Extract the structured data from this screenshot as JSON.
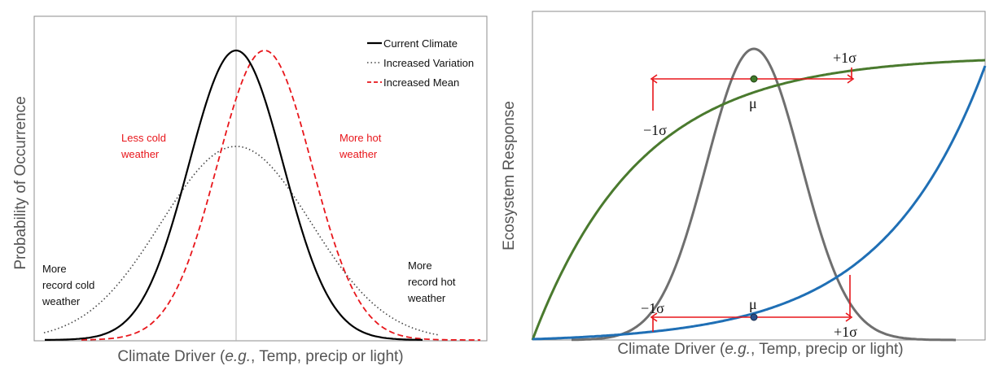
{
  "left": {
    "x_axis_title_pre": "Climate Driver (",
    "x_axis_title_ital": "e.g.",
    "x_axis_title_post": ", Temp, precip or light)",
    "y_axis_title": "Probability of Occurrence",
    "legend": [
      {
        "label": "Current Climate",
        "color": "#000000",
        "style": "solid"
      },
      {
        "label": "Increased Variation",
        "color": "#444444",
        "style": "dotted"
      },
      {
        "label": "Increased Mean",
        "color": "#e8161b",
        "style": "dashed"
      }
    ],
    "annotations": {
      "less_cold_1": "Less cold",
      "less_cold_2": "weather",
      "more_hot_1": "More hot",
      "more_hot_2": "weather",
      "record_cold_1": "More",
      "record_cold_2": "record cold",
      "record_cold_3": "weather",
      "record_hot_1": "More",
      "record_hot_2": "record hot",
      "record_hot_3": "weather"
    },
    "colors": {
      "red_text": "#e8161b",
      "black": "#000000"
    }
  },
  "right": {
    "x_axis_title_pre": "Climate Driver (",
    "x_axis_title_ital": "e.g.",
    "x_axis_title_post": ", Temp, precip or light)",
    "y_axis_title": "Ecosystem Response",
    "labels": {
      "plus_sigma_top": "+1σ",
      "minus_sigma_top": "−1σ",
      "mu_top": "μ",
      "mu_bottom": "μ",
      "minus_sigma_bottom": "−1σ",
      "plus_sigma_bottom": "+1σ"
    },
    "colors": {
      "green": "#4a7a2e",
      "blue": "#1f6fb5",
      "gray": "#6f6f6f",
      "red": "#e8161b",
      "dot_green": "#3f7a2a",
      "dot_blue": "#2a4f8a"
    }
  }
}
